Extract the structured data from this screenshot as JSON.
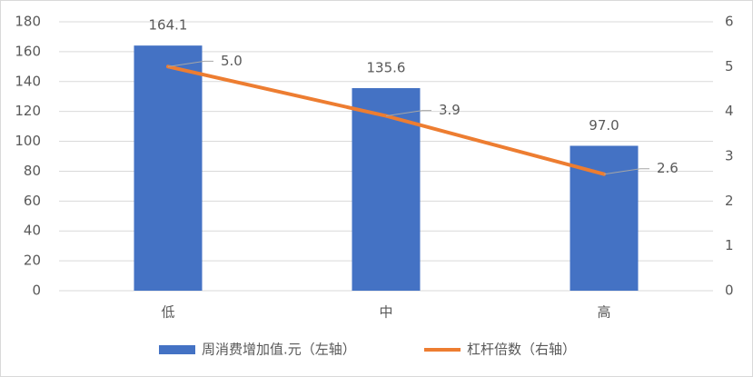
{
  "chart_data": {
    "type": "bar",
    "categories": [
      "低",
      "中",
      "高"
    ],
    "series": [
      {
        "name": "周消费增加值.元（左轴）",
        "type": "bar",
        "color": "#4472c4",
        "values": [
          164.1,
          135.6,
          97.0
        ],
        "value_labels": [
          "164.1",
          "135.6",
          "97.0"
        ]
      },
      {
        "name": "杠杆倍数（右轴）",
        "type": "line",
        "axis": "y2",
        "color": "#ed7d31",
        "values": [
          5.0,
          3.9,
          2.6
        ],
        "value_labels": [
          "5.0",
          "3.9",
          "2.6"
        ]
      }
    ],
    "ylim": [
      0,
      180
    ],
    "yticks": [
      0,
      20,
      40,
      60,
      80,
      100,
      120,
      140,
      160,
      180
    ],
    "y2lim": [
      0,
      6
    ],
    "y2ticks": [
      0,
      1,
      2,
      3,
      4,
      5,
      6
    ],
    "grid": true,
    "legend": "bottom"
  }
}
